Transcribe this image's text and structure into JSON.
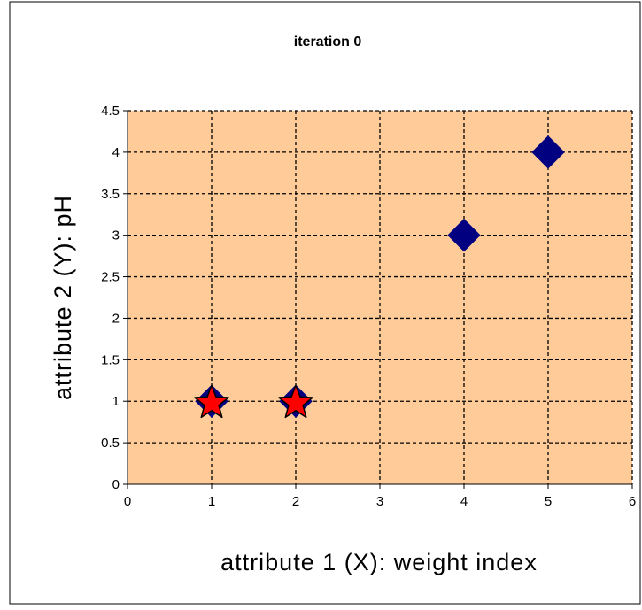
{
  "chart_data": {
    "type": "scatter",
    "title": "iteration 0",
    "xlabel": "attribute 1 (X): weight index",
    "ylabel": "attribute 2 (Y): pH",
    "xlim": [
      0,
      6
    ],
    "ylim": [
      0,
      4.5
    ],
    "x_ticks": [
      "0",
      "1",
      "2",
      "3",
      "4",
      "5",
      "6"
    ],
    "y_ticks": [
      "0",
      "0.5",
      "1",
      "1.5",
      "2",
      "2.5",
      "3",
      "3.5",
      "4",
      "4.5"
    ],
    "grid": true,
    "legend": "none",
    "series": [
      {
        "marker": "diamond",
        "color": "#000080",
        "points": [
          [
            1,
            1
          ],
          [
            2,
            1
          ],
          [
            4,
            3
          ],
          [
            5,
            4
          ]
        ]
      },
      {
        "marker": "star",
        "color": "#ff0000",
        "points": [
          [
            1,
            1
          ],
          [
            2,
            1
          ]
        ]
      }
    ],
    "plot_background": "#ffcc99",
    "grid_color": "#000000"
  }
}
